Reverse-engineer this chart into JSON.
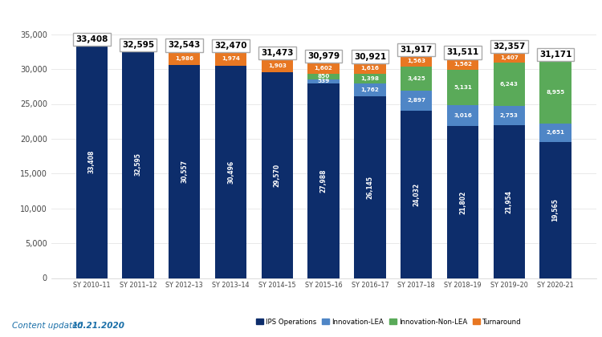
{
  "years": [
    "SY 2010–11",
    "SY 2011–12",
    "SY 2012–13",
    "SY 2013–14",
    "SY 2014–15",
    "SY 2015–16",
    "SY 2016–17",
    "SY 2017–18",
    "SY 2018–19",
    "SY 2019–20",
    "SY 2020-21"
  ],
  "totals": [
    33408,
    32595,
    32543,
    32470,
    31473,
    30979,
    30921,
    31917,
    31511,
    32357,
    31171
  ],
  "ips_operations": [
    33408,
    32595,
    30557,
    30496,
    29570,
    27988,
    26145,
    24032,
    21802,
    21954,
    19565
  ],
  "innovation_lea": [
    0,
    0,
    0,
    0,
    0,
    539,
    1762,
    2897,
    3016,
    2753,
    2651
  ],
  "innovation_nonlea": [
    0,
    0,
    0,
    0,
    0,
    850,
    1398,
    3425,
    5131,
    6243,
    8955
  ],
  "turnaround": [
    0,
    0,
    1986,
    1974,
    1903,
    1602,
    1616,
    1563,
    1562,
    1407,
    0
  ],
  "colors": {
    "ips_operations": "#0d2d6b",
    "innovation_lea": "#4f86c6",
    "innovation_nonlea": "#5aaa59",
    "turnaround": "#e87722"
  },
  "ylim": [
    0,
    37500
  ],
  "yticks": [
    0,
    5000,
    10000,
    15000,
    20000,
    25000,
    30000,
    35000
  ],
  "bar_width": 0.68,
  "background_color": "#ffffff",
  "legend_labels": [
    "IPS Operations",
    "Innovation-LEA",
    "Innovation-Non-LEA",
    "Turnaround"
  ],
  "footer_text": "Content updated ",
  "footer_bold": "10.21.2020"
}
